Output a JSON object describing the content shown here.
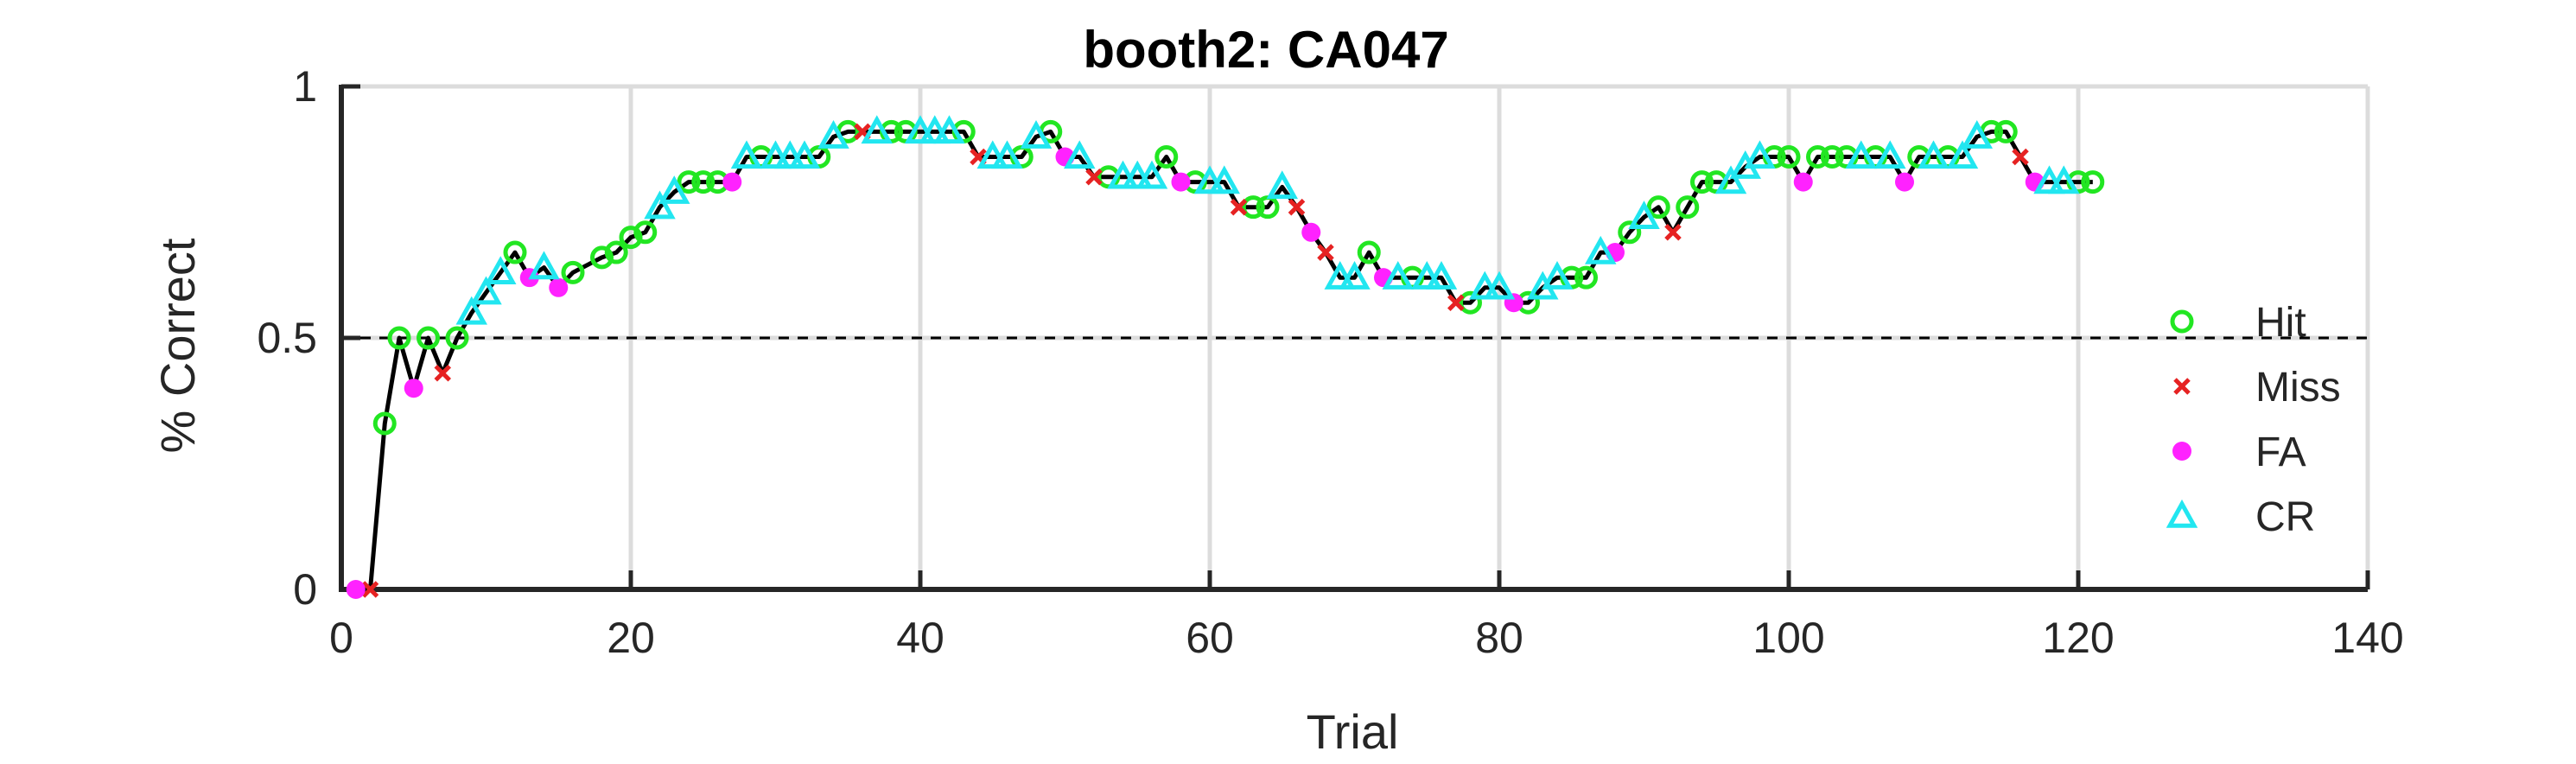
{
  "chart_data": {
    "type": "line",
    "title": "booth2: CA047",
    "xlabel": "Trial",
    "ylabel": "% Correct",
    "xlim": [
      0,
      140
    ],
    "ylim": [
      0,
      1
    ],
    "xticks": [
      0,
      20,
      40,
      60,
      80,
      100,
      120,
      140
    ],
    "yticks": [
      0,
      0.5,
      1
    ],
    "ytick_labels": [
      "0",
      "0.5",
      "1"
    ],
    "grid": true,
    "reference_line": 0.5,
    "legend_position": "right",
    "colors": {
      "line": "#000000",
      "hit": "#22e622",
      "miss": "#e62222",
      "fa": "#ff22ff",
      "cr": "#22e6f0",
      "grid": "#dcdcdc"
    },
    "series": [
      {
        "name": "Hit",
        "marker": "circle",
        "points": [
          [
            3,
            0.33
          ],
          [
            4,
            0.5
          ],
          [
            6,
            0.5
          ],
          [
            8,
            0.5
          ],
          [
            12,
            0.67
          ],
          [
            16,
            0.63
          ],
          [
            18,
            0.66
          ],
          [
            19,
            0.67
          ],
          [
            20,
            0.7
          ],
          [
            21,
            0.71
          ],
          [
            24,
            0.81
          ],
          [
            25,
            0.81
          ],
          [
            26,
            0.81
          ],
          [
            29,
            0.86
          ],
          [
            33,
            0.86
          ],
          [
            35,
            0.91
          ],
          [
            38,
            0.91
          ],
          [
            39,
            0.91
          ],
          [
            43,
            0.91
          ],
          [
            47,
            0.86
          ],
          [
            49,
            0.91
          ],
          [
            53,
            0.82
          ],
          [
            57,
            0.86
          ],
          [
            59,
            0.81
          ],
          [
            63,
            0.76
          ],
          [
            64,
            0.76
          ],
          [
            71,
            0.67
          ],
          [
            74,
            0.62
          ],
          [
            78,
            0.57
          ],
          [
            82,
            0.57
          ],
          [
            85,
            0.62
          ],
          [
            86,
            0.62
          ],
          [
            89,
            0.71
          ],
          [
            91,
            0.76
          ],
          [
            93,
            0.76
          ],
          [
            94,
            0.81
          ],
          [
            95,
            0.81
          ],
          [
            99,
            0.86
          ],
          [
            100,
            0.86
          ],
          [
            102,
            0.86
          ],
          [
            103,
            0.86
          ],
          [
            104,
            0.86
          ],
          [
            106,
            0.86
          ],
          [
            109,
            0.86
          ],
          [
            111,
            0.86
          ],
          [
            114,
            0.91
          ],
          [
            115,
            0.91
          ],
          [
            120,
            0.81
          ],
          [
            121,
            0.81
          ]
        ]
      },
      {
        "name": "Miss",
        "marker": "x",
        "points": [
          [
            2,
            0.0
          ],
          [
            7,
            0.43
          ],
          [
            36,
            0.91
          ],
          [
            44,
            0.86
          ],
          [
            52,
            0.82
          ],
          [
            62,
            0.76
          ],
          [
            66,
            0.76
          ],
          [
            68,
            0.67
          ],
          [
            77,
            0.57
          ],
          [
            92,
            0.71
          ],
          [
            116,
            0.86
          ]
        ]
      },
      {
        "name": "FA",
        "marker": "dot",
        "points": [
          [
            1,
            0.0
          ],
          [
            5,
            0.4
          ],
          [
            13,
            0.62
          ],
          [
            15,
            0.6
          ],
          [
            27,
            0.81
          ],
          [
            50,
            0.86
          ],
          [
            58,
            0.81
          ],
          [
            67,
            0.71
          ],
          [
            72,
            0.62
          ],
          [
            81,
            0.57
          ],
          [
            88,
            0.67
          ],
          [
            101,
            0.81
          ],
          [
            108,
            0.81
          ],
          [
            117,
            0.81
          ]
        ]
      },
      {
        "name": "CR",
        "marker": "triangle",
        "points": [
          [
            9,
            0.55
          ],
          [
            10,
            0.59
          ],
          [
            11,
            0.63
          ],
          [
            14,
            0.64
          ],
          [
            22,
            0.76
          ],
          [
            23,
            0.79
          ],
          [
            28,
            0.86
          ],
          [
            30,
            0.86
          ],
          [
            31,
            0.86
          ],
          [
            32,
            0.86
          ],
          [
            34,
            0.9
          ],
          [
            37,
            0.91
          ],
          [
            40,
            0.91
          ],
          [
            41,
            0.91
          ],
          [
            42,
            0.91
          ],
          [
            45,
            0.86
          ],
          [
            46,
            0.86
          ],
          [
            48,
            0.9
          ],
          [
            51,
            0.86
          ],
          [
            54,
            0.82
          ],
          [
            55,
            0.82
          ],
          [
            56,
            0.82
          ],
          [
            60,
            0.81
          ],
          [
            61,
            0.81
          ],
          [
            65,
            0.8
          ],
          [
            69,
            0.62
          ],
          [
            70,
            0.62
          ],
          [
            73,
            0.62
          ],
          [
            75,
            0.62
          ],
          [
            76,
            0.62
          ],
          [
            79,
            0.6
          ],
          [
            80,
            0.6
          ],
          [
            83,
            0.6
          ],
          [
            84,
            0.62
          ],
          [
            87,
            0.67
          ],
          [
            90,
            0.74
          ],
          [
            96,
            0.81
          ],
          [
            97,
            0.84
          ],
          [
            98,
            0.86
          ],
          [
            105,
            0.86
          ],
          [
            107,
            0.86
          ],
          [
            110,
            0.86
          ],
          [
            112,
            0.86
          ],
          [
            113,
            0.9
          ],
          [
            118,
            0.81
          ],
          [
            119,
            0.81
          ]
        ]
      }
    ]
  }
}
